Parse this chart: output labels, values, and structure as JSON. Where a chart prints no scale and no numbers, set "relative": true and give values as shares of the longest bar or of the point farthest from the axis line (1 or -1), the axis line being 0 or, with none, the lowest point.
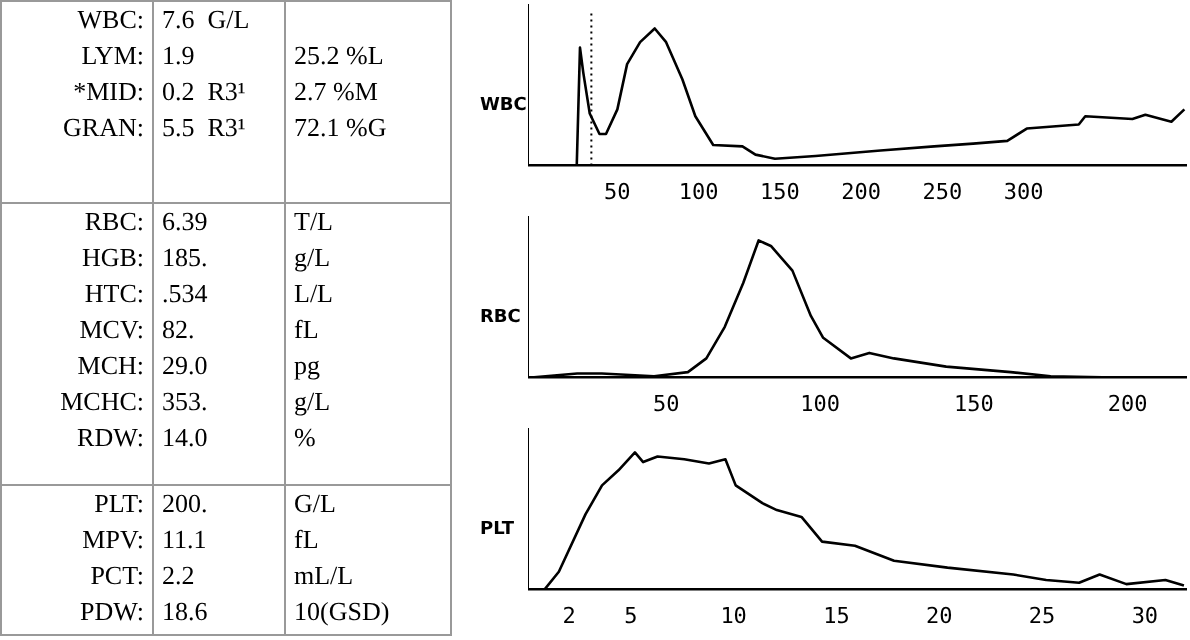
{
  "chart_data": [
    {
      "type": "other",
      "y_categories": [
        "WBC:",
        "LYM:",
        "*MID:",
        "GRAN:"
      ],
      "cell_labels": [
        [
          "7.6  G/L",
          null
        ],
        [
          "1.9",
          "25.2 %L"
        ],
        [
          "0.2  R3¹",
          "2.7 %M"
        ],
        [
          "5.5  R3¹",
          "72.1 %G"
        ]
      ]
    },
    {
      "type": "other",
      "y_categories": [
        "RBC:",
        "HGB:",
        "HTC:",
        "MCV:",
        "MCH:",
        "MCHC:",
        "RDW:"
      ],
      "cell_labels": [
        [
          "6.39",
          "T/L"
        ],
        [
          "185.",
          "g/L"
        ],
        [
          ".534",
          "L/L"
        ],
        [
          "82.",
          "fL"
        ],
        [
          "29.0",
          "pg"
        ],
        [
          "353.",
          "g/L"
        ],
        [
          "14.0",
          "%"
        ]
      ]
    },
    {
      "type": "other",
      "y_categories": [
        "PLT:",
        "MPV:",
        "PCT:",
        "PDW:"
      ],
      "cell_labels": [
        [
          "200.",
          "G/L"
        ],
        [
          "11.1",
          "fL"
        ],
        [
          "2.2",
          "mL/L"
        ],
        [
          "18.6",
          "10(GSD)"
        ]
      ]
    },
    {
      "type": "line",
      "ylabel": "WBC",
      "relative": true,
      "grid": false,
      "marker": "none",
      "xlim": [
        -5,
        400
      ],
      "xticks": [
        50,
        100,
        150,
        200,
        250,
        300
      ],
      "ref_lines": [
        {
          "axis": "x",
          "value": 34,
          "line_style": "dotted",
          "color": "#000000"
        }
      ],
      "series": [
        {
          "color": "#000000",
          "x": [
            25,
            27,
            29,
            33,
            39,
            43,
            50,
            56,
            64,
            73,
            80,
            90,
            98,
            109,
            127,
            135,
            147,
            172,
            212,
            245,
            269,
            290,
            302,
            334,
            338,
            367,
            375,
            391,
            399
          ],
          "values": [
            0,
            0.86,
            0.68,
            0.38,
            0.23,
            0.23,
            0.41,
            0.74,
            0.9,
            1,
            0.9,
            0.63,
            0.36,
            0.15,
            0.14,
            0.08,
            0.05,
            0.07,
            0.11,
            0.14,
            0.16,
            0.18,
            0.27,
            0.3,
            0.36,
            0.34,
            0.37,
            0.32,
            0.41
          ]
        }
      ]
    },
    {
      "type": "line",
      "ylabel": "RBC",
      "relative": true,
      "grid": false,
      "marker": "none",
      "xlim": [
        5,
        219
      ],
      "xticks": [
        50,
        100,
        150,
        200
      ],
      "series": [
        {
          "color": "#000000",
          "x": [
            6,
            21,
            29,
            46,
            57,
            63,
            69,
            75,
            80,
            84,
            91,
            97,
            101,
            110,
            116,
            124,
            141,
            162,
            175,
            196,
            217
          ],
          "values": [
            0,
            0.03,
            0.03,
            0.01,
            0.04,
            0.14,
            0.37,
            0.69,
            1,
            0.96,
            0.78,
            0.45,
            0.29,
            0.14,
            0.18,
            0.14,
            0.08,
            0.04,
            0.01,
            0,
            0
          ]
        }
      ]
    },
    {
      "type": "line",
      "ylabel": "PLT",
      "relative": true,
      "grid": false,
      "marker": "none",
      "xlim": [
        0,
        32
      ],
      "xticks": [
        2,
        5,
        10,
        15,
        20,
        25,
        30
      ],
      "series": [
        {
          "color": "#000000",
          "x": [
            0.8,
            1.5,
            2.8,
            3.6,
            4.4,
            5.2,
            5.6,
            6.3,
            7.6,
            8.8,
            9.6,
            10.1,
            11.4,
            12.1,
            13.3,
            14.3,
            15.9,
            17.8,
            20.4,
            23.6,
            25.2,
            26.8,
            27.8,
            29.1,
            31,
            31.9
          ],
          "values": [
            0,
            0.13,
            0.55,
            0.76,
            0.87,
            1,
            0.93,
            0.97,
            0.95,
            0.92,
            0.95,
            0.76,
            0.63,
            0.58,
            0.53,
            0.35,
            0.32,
            0.21,
            0.16,
            0.11,
            0.07,
            0.05,
            0.11,
            0.04,
            0.07,
            0.03
          ]
        }
      ]
    }
  ]
}
